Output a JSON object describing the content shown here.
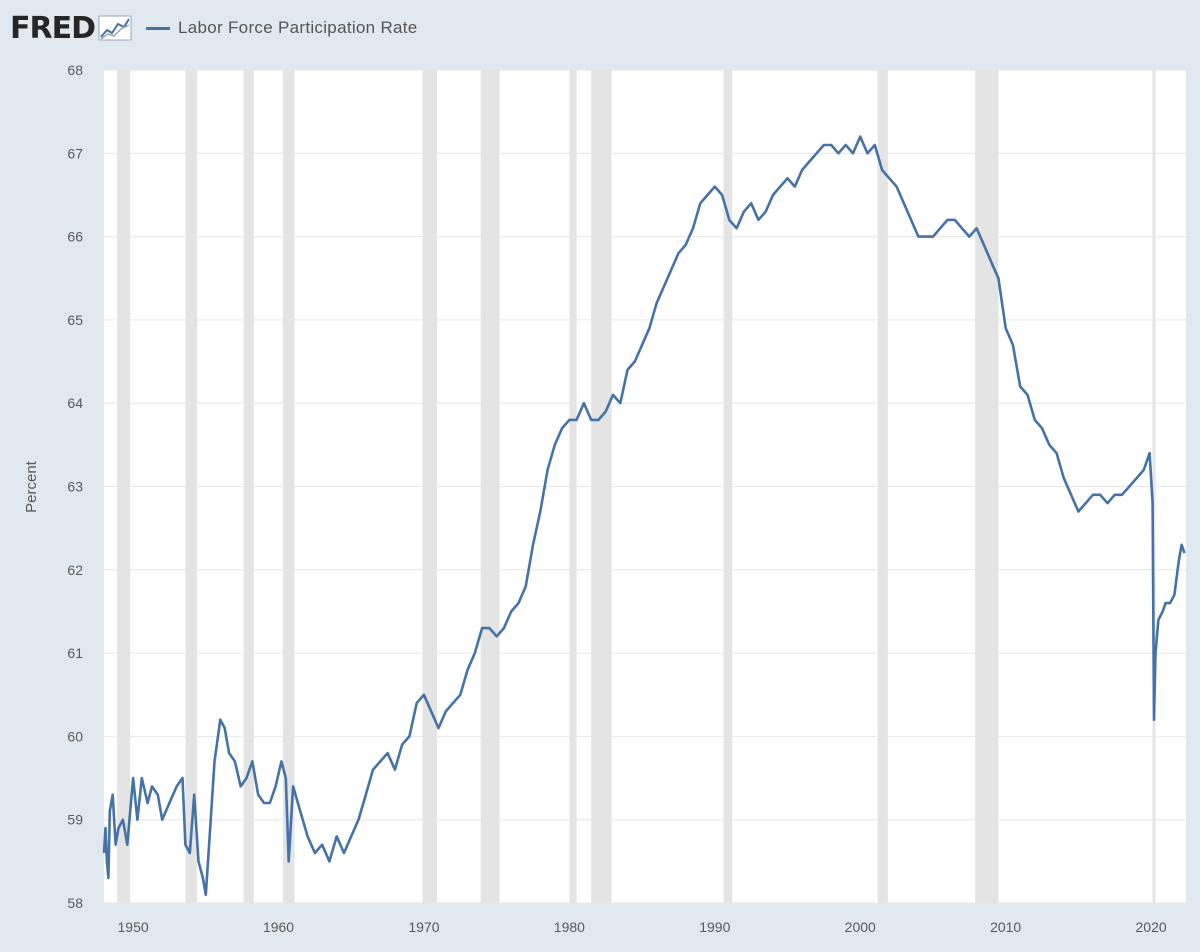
{
  "header": {
    "logo_text": "FRED",
    "logo_icon": "fred-graph-icon"
  },
  "colors": {
    "background": "#e1e9f0",
    "plot_background": "#ffffff",
    "line": "#4572a7",
    "recession": "#e4e4e4",
    "grid": "#e6e6e6"
  },
  "chart_data": {
    "type": "line",
    "title": "",
    "legend": [
      "Labor Force Participation Rate"
    ],
    "legend_position": "top-left",
    "xlabel": "",
    "ylabel": "Percent",
    "xlim": [
      1948.0,
      2022.4
    ],
    "ylim": [
      58,
      68
    ],
    "yticks": [
      "58",
      "59",
      "60",
      "61",
      "62",
      "63",
      "64",
      "65",
      "66",
      "67",
      "68"
    ],
    "xticks": [
      "1950",
      "1960",
      "1970",
      "1980",
      "1990",
      "2000",
      "2010",
      "2020"
    ],
    "grid": true,
    "recessions": [
      [
        1948.9,
        1949.8
      ],
      [
        1953.6,
        1954.4
      ],
      [
        1957.6,
        1958.3
      ],
      [
        1960.3,
        1961.1
      ],
      [
        1969.9,
        1970.9
      ],
      [
        1973.9,
        1975.2
      ],
      [
        1980.0,
        1980.5
      ],
      [
        1981.5,
        1982.9
      ],
      [
        1990.6,
        1991.2
      ],
      [
        2001.2,
        2001.9
      ],
      [
        2007.9,
        2009.5
      ],
      [
        2020.1,
        2020.3
      ]
    ],
    "series": [
      {
        "name": "Labor Force Participation Rate",
        "x": [
          1948.0,
          1948.1,
          1948.2,
          1948.3,
          1948.4,
          1948.6,
          1948.8,
          1949.0,
          1949.3,
          1949.6,
          1949.8,
          1950.0,
          1950.3,
          1950.6,
          1951.0,
          1951.3,
          1951.7,
          1952.0,
          1952.5,
          1953.0,
          1953.4,
          1953.6,
          1953.9,
          1954.2,
          1954.5,
          1954.8,
          1955.0,
          1955.3,
          1955.6,
          1956.0,
          1956.3,
          1956.6,
          1957.0,
          1957.4,
          1957.8,
          1958.2,
          1958.6,
          1959.0,
          1959.4,
          1959.8,
          1960.2,
          1960.5,
          1960.7,
          1961.0,
          1961.5,
          1962.0,
          1962.5,
          1963.0,
          1963.5,
          1964.0,
          1964.5,
          1965.0,
          1965.5,
          1966.0,
          1966.5,
          1967.0,
          1967.5,
          1968.0,
          1968.5,
          1969.0,
          1969.5,
          1970.0,
          1970.5,
          1971.0,
          1971.5,
          1972.0,
          1972.5,
          1973.0,
          1973.5,
          1974.0,
          1974.5,
          1975.0,
          1975.5,
          1976.0,
          1976.5,
          1977.0,
          1977.5,
          1978.0,
          1978.5,
          1979.0,
          1979.5,
          1980.0,
          1980.5,
          1981.0,
          1981.5,
          1982.0,
          1982.5,
          1983.0,
          1983.5,
          1984.0,
          1984.5,
          1985.0,
          1985.5,
          1986.0,
          1986.5,
          1987.0,
          1987.5,
          1988.0,
          1988.5,
          1989.0,
          1989.5,
          1990.0,
          1990.5,
          1991.0,
          1991.5,
          1992.0,
          1992.5,
          1993.0,
          1993.5,
          1994.0,
          1994.5,
          1995.0,
          1995.5,
          1996.0,
          1996.5,
          1997.0,
          1997.5,
          1998.0,
          1998.5,
          1999.0,
          1999.5,
          2000.0,
          2000.5,
          2001.0,
          2001.5,
          2002.0,
          2002.5,
          2003.0,
          2003.5,
          2004.0,
          2004.5,
          2005.0,
          2005.5,
          2006.0,
          2006.5,
          2007.0,
          2007.5,
          2008.0,
          2008.5,
          2009.0,
          2009.5,
          2010.0,
          2010.5,
          2011.0,
          2011.5,
          2012.0,
          2012.5,
          2013.0,
          2013.5,
          2014.0,
          2014.5,
          2015.0,
          2015.5,
          2016.0,
          2016.5,
          2017.0,
          2017.5,
          2018.0,
          2018.5,
          2019.0,
          2019.5,
          2019.9,
          2020.1,
          2020.2,
          2020.3,
          2020.5,
          2020.8,
          2021.0,
          2021.3,
          2021.6,
          2021.9,
          2022.1,
          2022.3
        ],
        "y": [
          58.6,
          58.9,
          58.5,
          58.3,
          59.1,
          59.3,
          58.7,
          58.9,
          59.0,
          58.7,
          59.1,
          59.5,
          59.0,
          59.5,
          59.2,
          59.4,
          59.3,
          59.0,
          59.2,
          59.4,
          59.5,
          58.7,
          58.6,
          59.3,
          58.5,
          58.3,
          58.1,
          58.9,
          59.7,
          60.2,
          60.1,
          59.8,
          59.7,
          59.4,
          59.5,
          59.7,
          59.3,
          59.2,
          59.2,
          59.4,
          59.7,
          59.5,
          58.5,
          59.4,
          59.1,
          58.8,
          58.6,
          58.7,
          58.5,
          58.8,
          58.6,
          58.8,
          59.0,
          59.3,
          59.6,
          59.7,
          59.8,
          59.6,
          59.9,
          60.0,
          60.4,
          60.5,
          60.3,
          60.1,
          60.3,
          60.4,
          60.5,
          60.8,
          61.0,
          61.3,
          61.3,
          61.2,
          61.3,
          61.5,
          61.6,
          61.8,
          62.3,
          62.7,
          63.2,
          63.5,
          63.7,
          63.8,
          63.8,
          64.0,
          63.8,
          63.8,
          63.9,
          64.1,
          64.0,
          64.4,
          64.5,
          64.7,
          64.9,
          65.2,
          65.4,
          65.6,
          65.8,
          65.9,
          66.1,
          66.4,
          66.5,
          66.6,
          66.5,
          66.2,
          66.1,
          66.3,
          66.4,
          66.2,
          66.3,
          66.5,
          66.6,
          66.7,
          66.6,
          66.8,
          66.9,
          67.0,
          67.1,
          67.1,
          67.0,
          67.1,
          67.0,
          67.2,
          67.0,
          67.1,
          66.8,
          66.7,
          66.6,
          66.4,
          66.2,
          66.0,
          66.0,
          66.0,
          66.1,
          66.2,
          66.2,
          66.1,
          66.0,
          66.1,
          65.9,
          65.7,
          65.5,
          64.9,
          64.7,
          64.2,
          64.1,
          63.8,
          63.7,
          63.5,
          63.4,
          63.1,
          62.9,
          62.7,
          62.8,
          62.9,
          62.9,
          62.8,
          62.9,
          62.9,
          63.0,
          63.1,
          63.2,
          63.4,
          62.8,
          60.2,
          61.0,
          61.4,
          61.5,
          61.6,
          61.6,
          61.7,
          62.1,
          62.3,
          62.2
        ]
      }
    ]
  }
}
